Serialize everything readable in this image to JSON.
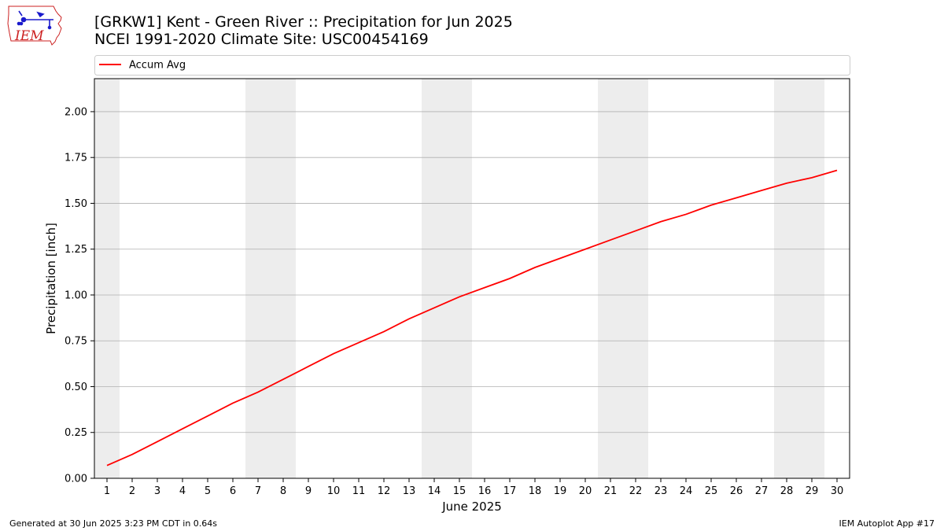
{
  "header": {
    "title_line1": "[GRKW1] Kent - Green River :: Precipitation for Jun 2025",
    "title_line2": "NCEI 1991-2020 Climate Site: USC00454169"
  },
  "logo": {
    "text": "IEM",
    "icon": "iem-iowa-map-logo-icon"
  },
  "footer": {
    "left": "Generated at 30 Jun 2025 3:23 PM CDT in 0.64s",
    "right": "IEM Autoplot App #17"
  },
  "colors": {
    "series_line": "#ff0000",
    "weekend_band": "#ededed",
    "grid": "#b0b0b0",
    "logo_red": "#cc2222",
    "logo_blue": "#1a1acc"
  },
  "chart_data": {
    "type": "line",
    "title": "[GRKW1] Kent - Green River :: Precipitation for Jun 2025",
    "subtitle": "NCEI 1991-2020 Climate Site: USC00454169",
    "xlabel": "June 2025",
    "ylabel": "Precipitation [inch]",
    "x": [
      1,
      2,
      3,
      4,
      5,
      6,
      7,
      8,
      9,
      10,
      11,
      12,
      13,
      14,
      15,
      16,
      17,
      18,
      19,
      20,
      21,
      22,
      23,
      24,
      25,
      26,
      27,
      28,
      29,
      30
    ],
    "xticks": [
      "1",
      "2",
      "3",
      "4",
      "5",
      "6",
      "7",
      "8",
      "9",
      "10",
      "11",
      "12",
      "13",
      "14",
      "15",
      "16",
      "17",
      "18",
      "19",
      "20",
      "21",
      "22",
      "23",
      "24",
      "25",
      "26",
      "27",
      "28",
      "29",
      "30"
    ],
    "xlim": [
      0.5,
      30.5
    ],
    "ylim": [
      0,
      2.18
    ],
    "yticks": [
      "0.00",
      "0.25",
      "0.50",
      "0.75",
      "1.00",
      "1.25",
      "1.50",
      "1.75",
      "2.00"
    ],
    "ytick_values": [
      0,
      0.25,
      0.5,
      0.75,
      1.0,
      1.25,
      1.5,
      1.75,
      2.0
    ],
    "grid": "horizontal",
    "legend_position": "top",
    "shaded_weekend_days": [
      1,
      7,
      8,
      14,
      15,
      21,
      22,
      28,
      29
    ],
    "series": [
      {
        "name": "Accum Avg",
        "color": "#ff0000",
        "values": [
          0.07,
          0.13,
          0.2,
          0.27,
          0.34,
          0.41,
          0.47,
          0.54,
          0.61,
          0.68,
          0.74,
          0.8,
          0.87,
          0.93,
          0.99,
          1.04,
          1.09,
          1.15,
          1.2,
          1.25,
          1.3,
          1.35,
          1.4,
          1.44,
          1.49,
          1.53,
          1.57,
          1.61,
          1.64,
          1.68
        ]
      }
    ]
  }
}
